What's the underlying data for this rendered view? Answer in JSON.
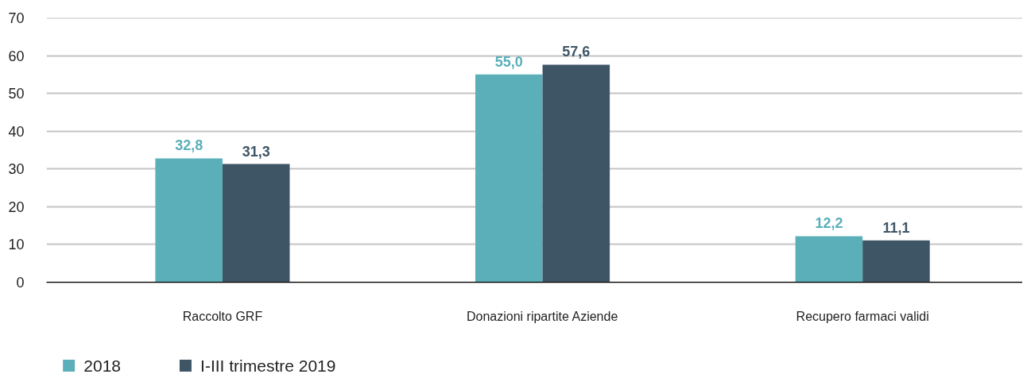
{
  "chart_data": {
    "type": "bar",
    "categories": [
      "Raccolto GRF",
      "Donazioni ripartite Aziende",
      "Recupero farmaci validi"
    ],
    "series": [
      {
        "name": "2018",
        "color": "#5aafb9",
        "values": [
          32.8,
          55.0,
          12.2
        ],
        "value_labels": [
          "32,8",
          "55,0",
          "12,2"
        ]
      },
      {
        "name": "I-III trimestre 2019",
        "color": "#3e5566",
        "values": [
          31.3,
          57.6,
          11.1
        ],
        "value_labels": [
          "31,3",
          "57,6",
          "11,1"
        ]
      }
    ],
    "ylim": [
      0,
      70
    ],
    "yticks": [
      0,
      10,
      20,
      30,
      40,
      50,
      60,
      70
    ],
    "grid": "y",
    "legend": "bottom left"
  }
}
